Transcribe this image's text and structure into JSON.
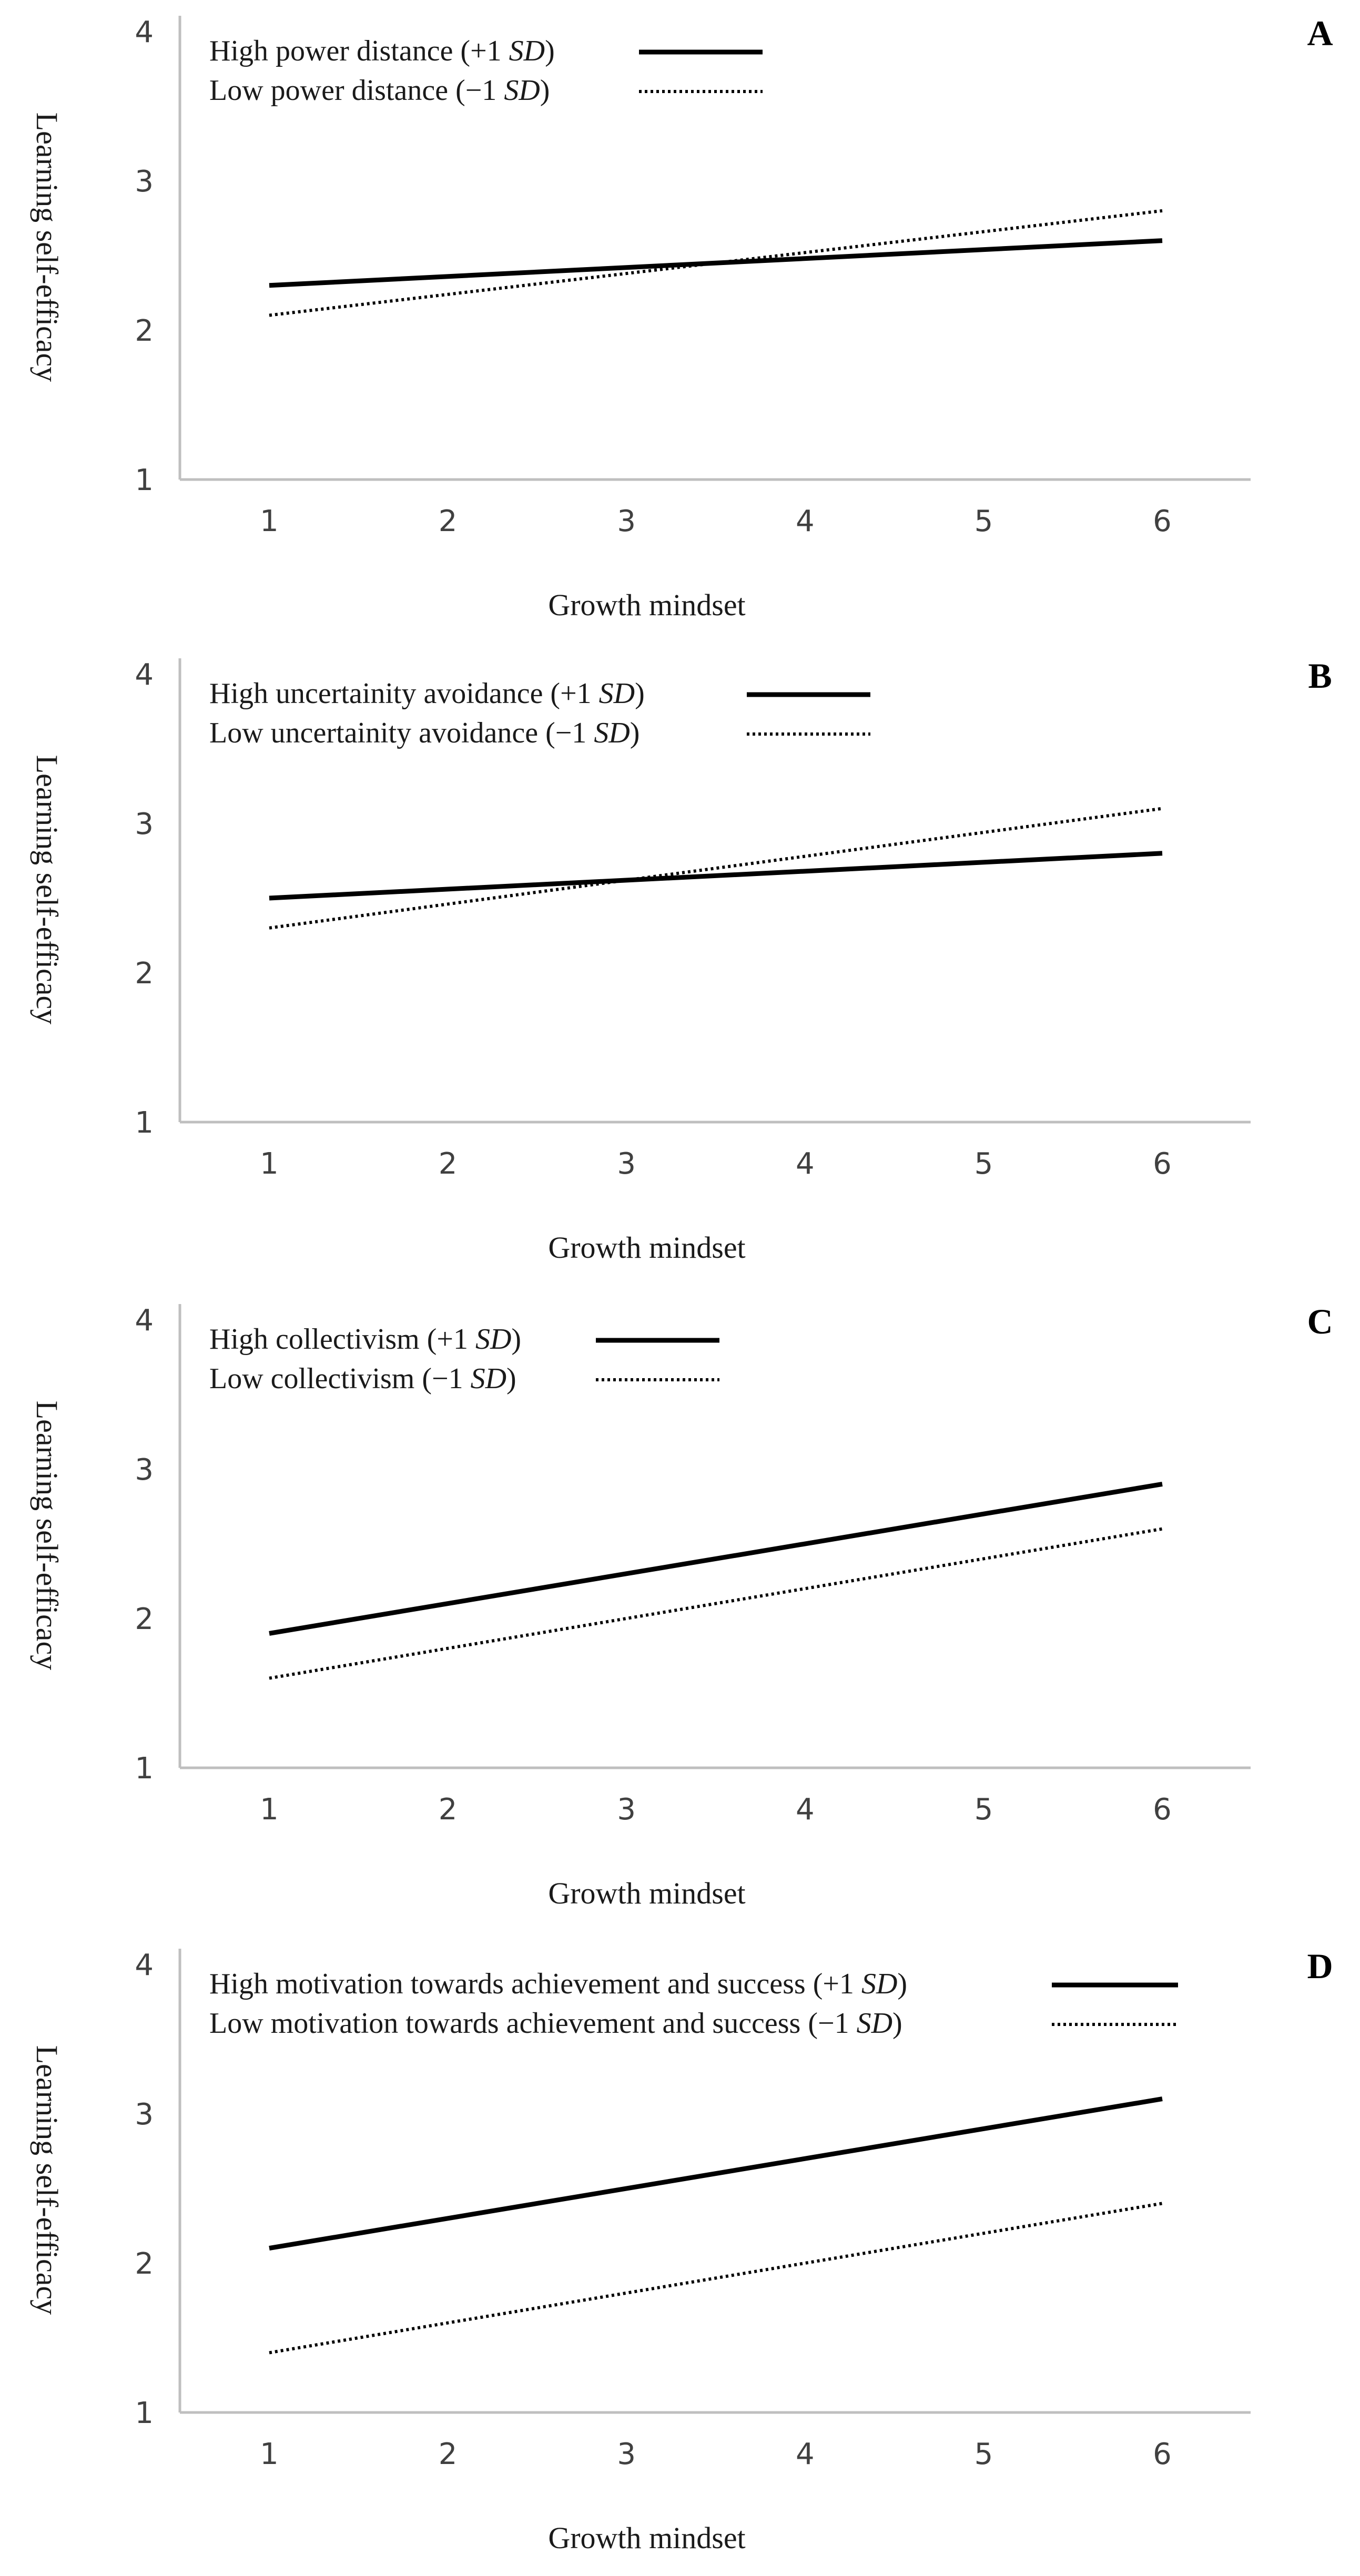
{
  "chart_data": [
    {
      "type": "line",
      "panel": "A",
      "xlabel": "Growth mindset",
      "ylabel": "Learning self-efficacy",
      "x": [
        1,
        2,
        3,
        4,
        5,
        6
      ],
      "yticks": [
        1,
        2,
        3,
        4
      ],
      "ylim": [
        1,
        4
      ],
      "series": [
        {
          "name_pre": "High power distance (+1 ",
          "name_sd": "SD",
          "name_post": ")",
          "style": "solid",
          "x": [
            1,
            6
          ],
          "values": [
            2.3,
            2.6
          ]
        },
        {
          "name_pre": "Low power distance (−1 ",
          "name_sd": "SD",
          "name_post": ")",
          "style": "dotted",
          "x": [
            1,
            6
          ],
          "values": [
            2.1,
            2.8
          ]
        }
      ]
    },
    {
      "type": "line",
      "panel": "B",
      "xlabel": "Growth mindset",
      "ylabel": "Learning self-efficacy",
      "x": [
        1,
        2,
        3,
        4,
        5,
        6
      ],
      "yticks": [
        1,
        2,
        3,
        4
      ],
      "ylim": [
        1,
        4
      ],
      "series": [
        {
          "name_pre": "High uncertainity avoidance (+1 ",
          "name_sd": "SD",
          "name_post": ")",
          "style": "solid",
          "x": [
            1,
            6
          ],
          "values": [
            2.5,
            2.8
          ]
        },
        {
          "name_pre": "Low uncertainity avoidance (−1 ",
          "name_sd": "SD",
          "name_post": ")",
          "style": "dotted",
          "x": [
            1,
            6
          ],
          "values": [
            2.3,
            3.1
          ]
        }
      ]
    },
    {
      "type": "line",
      "panel": "C",
      "xlabel": "Growth mindset",
      "ylabel": "Learning self-efficacy",
      "x": [
        1,
        2,
        3,
        4,
        5,
        6
      ],
      "yticks": [
        1,
        2,
        3,
        4
      ],
      "ylim": [
        1,
        4
      ],
      "series": [
        {
          "name_pre": "High collectivism (+1 ",
          "name_sd": "SD",
          "name_post": ")",
          "style": "solid",
          "x": [
            1,
            6
          ],
          "values": [
            1.9,
            2.9
          ]
        },
        {
          "name_pre": "Low collectivism (−1 ",
          "name_sd": "SD",
          "name_post": ")",
          "style": "dotted",
          "x": [
            1,
            6
          ],
          "values": [
            1.6,
            2.6
          ]
        }
      ]
    },
    {
      "type": "line",
      "panel": "D",
      "xlabel": "Growth mindset",
      "ylabel": "Learning self-efficacy",
      "x": [
        1,
        2,
        3,
        4,
        5,
        6
      ],
      "yticks": [
        1,
        2,
        3,
        4
      ],
      "ylim": [
        1,
        4
      ],
      "series": [
        {
          "name_pre": "High motivation towards achievement and success (+1 ",
          "name_sd": "SD",
          "name_post": ")",
          "style": "solid",
          "x": [
            1,
            6
          ],
          "values": [
            2.1,
            3.1
          ]
        },
        {
          "name_pre": "Low motivation towards achievement and success (−1 ",
          "name_sd": "SD",
          "name_post": ")",
          "style": "dotted",
          "x": [
            1,
            6
          ],
          "values": [
            1.4,
            2.4
          ]
        }
      ]
    }
  ]
}
